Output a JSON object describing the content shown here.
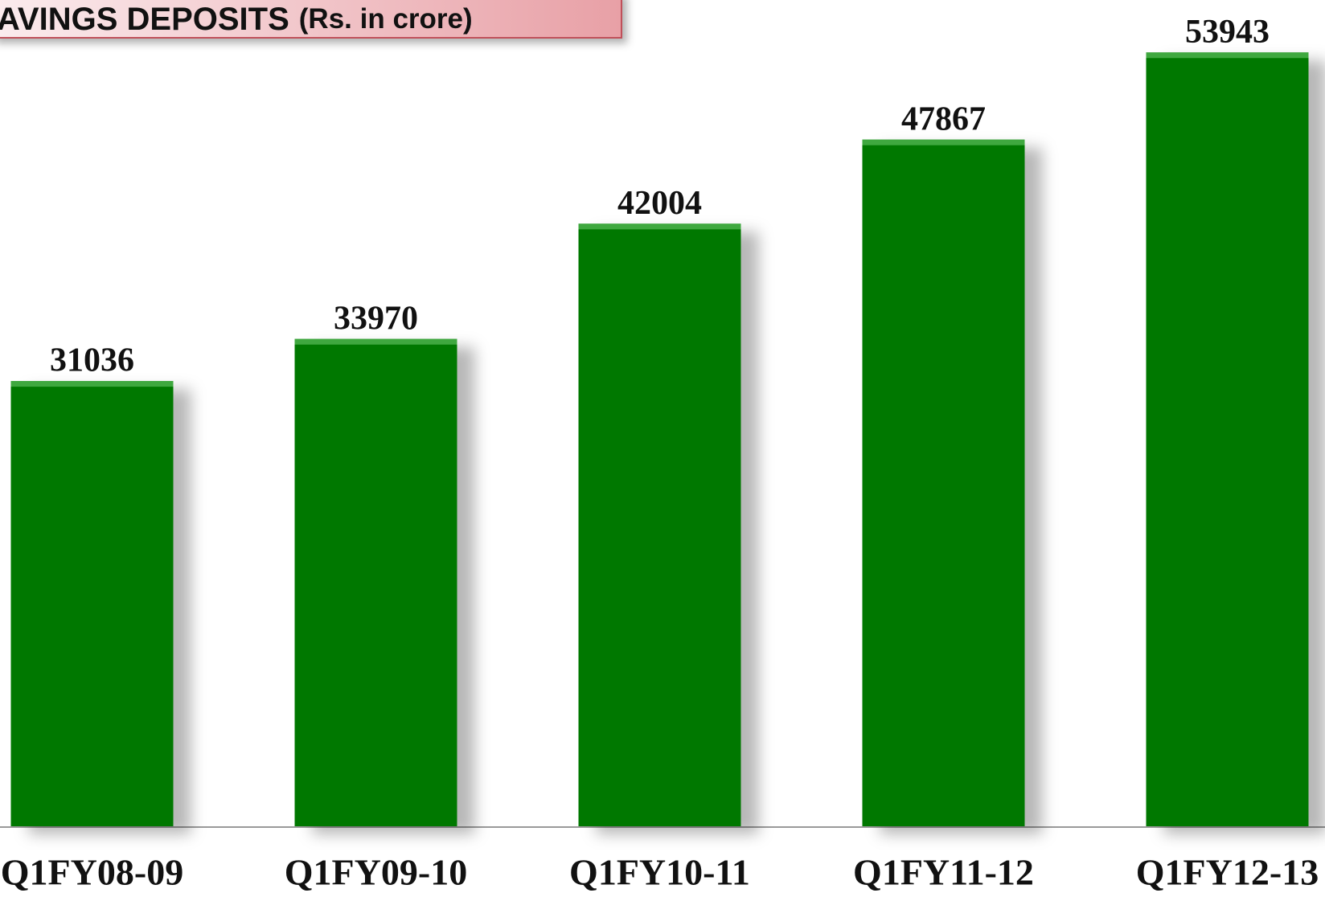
{
  "chart_data": {
    "type": "bar",
    "title": "AVINGS DEPOSITS",
    "subtitle": "(Rs. in crore)",
    "categories": [
      "Q1FY08-09",
      "Q1FY09-10",
      "Q1FY10-11",
      "Q1FY11-12",
      "Q1FY12-13"
    ],
    "values": [
      31036,
      33970,
      42004,
      47867,
      53943
    ],
    "color": "#027802",
    "ylim": [
      0,
      57600
    ]
  }
}
